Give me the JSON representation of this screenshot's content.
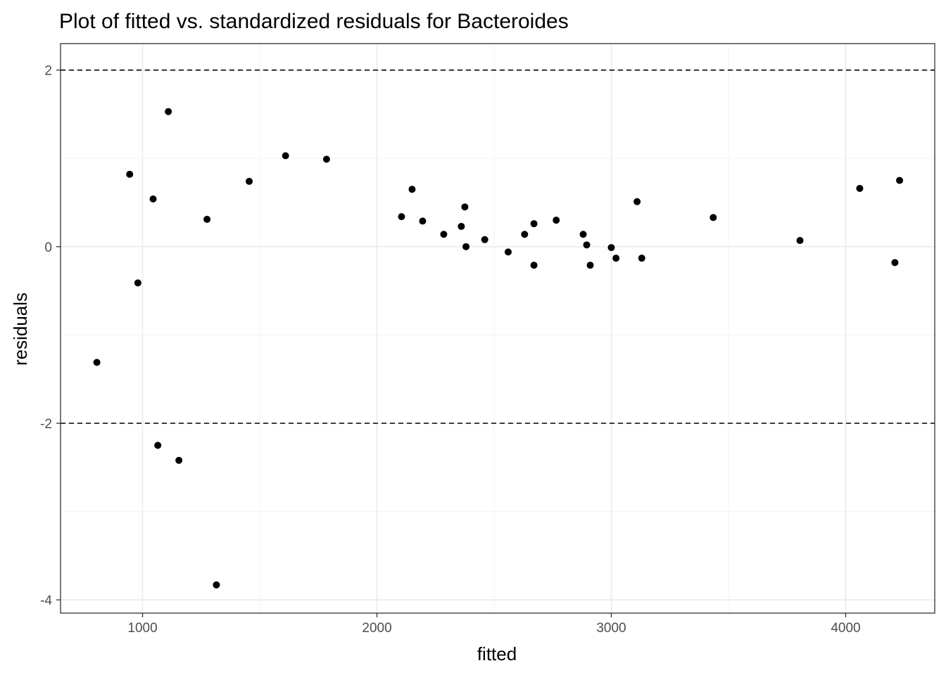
{
  "chart_data": {
    "type": "scatter",
    "title": "Plot of fitted vs. standardized residuals for Bacteroides",
    "xlabel": "fitted",
    "ylabel": "residuals",
    "xlim": [
      650,
      4380
    ],
    "ylim": [
      -4.15,
      2.3
    ],
    "x_ticks": [
      1000,
      2000,
      3000,
      4000
    ],
    "x_tick_labels": [
      "1000",
      "2000",
      "3000",
      "4000"
    ],
    "y_ticks": [
      -4,
      -2,
      0,
      2
    ],
    "y_tick_labels": [
      "-4",
      "-2",
      "0",
      "2"
    ],
    "grid": true,
    "reference_lines": [
      2,
      -2
    ],
    "point_color": "#000000",
    "points": [
      {
        "x": 805,
        "y": -1.31
      },
      {
        "x": 945,
        "y": 0.82
      },
      {
        "x": 980,
        "y": -0.41
      },
      {
        "x": 1045,
        "y": 0.54
      },
      {
        "x": 1065,
        "y": -2.25
      },
      {
        "x": 1110,
        "y": 1.53
      },
      {
        "x": 1155,
        "y": -2.42
      },
      {
        "x": 1275,
        "y": 0.31
      },
      {
        "x": 1315,
        "y": -3.83
      },
      {
        "x": 1455,
        "y": 0.74
      },
      {
        "x": 1610,
        "y": 1.03
      },
      {
        "x": 1785,
        "y": 0.99
      },
      {
        "x": 2105,
        "y": 0.34
      },
      {
        "x": 2150,
        "y": 0.65
      },
      {
        "x": 2195,
        "y": 0.29
      },
      {
        "x": 2285,
        "y": 0.14
      },
      {
        "x": 2360,
        "y": 0.23
      },
      {
        "x": 2375,
        "y": 0.45
      },
      {
        "x": 2380,
        "y": 0.0
      },
      {
        "x": 2460,
        "y": 0.08
      },
      {
        "x": 2560,
        "y": -0.06
      },
      {
        "x": 2630,
        "y": 0.14
      },
      {
        "x": 2670,
        "y": 0.26
      },
      {
        "x": 2670,
        "y": -0.21
      },
      {
        "x": 2765,
        "y": 0.3
      },
      {
        "x": 2880,
        "y": 0.14
      },
      {
        "x": 2895,
        "y": 0.02
      },
      {
        "x": 2910,
        "y": -0.21
      },
      {
        "x": 3000,
        "y": -0.01
      },
      {
        "x": 3020,
        "y": -0.13
      },
      {
        "x": 3110,
        "y": 0.51
      },
      {
        "x": 3130,
        "y": -0.13
      },
      {
        "x": 3435,
        "y": 0.33
      },
      {
        "x": 3805,
        "y": 0.07
      },
      {
        "x": 4060,
        "y": 0.66
      },
      {
        "x": 4210,
        "y": -0.18
      },
      {
        "x": 4230,
        "y": 0.75
      }
    ]
  }
}
